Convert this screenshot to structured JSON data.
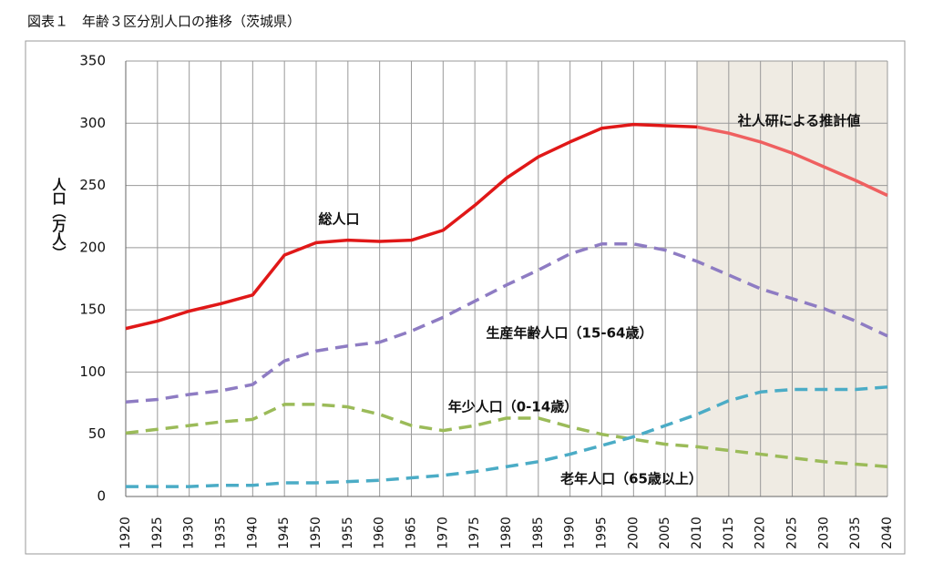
{
  "chart_data": {
    "type": "line",
    "title": "図表１　年齢３区分別人口の推移（茨城県）",
    "y_label": "人口（万人）",
    "x": [
      1920,
      1925,
      1930,
      1935,
      1940,
      1945,
      1950,
      1955,
      1960,
      1965,
      1970,
      1975,
      1980,
      1985,
      1990,
      1995,
      2000,
      2005,
      2010,
      2015,
      2020,
      2025,
      2030,
      2035,
      2040
    ],
    "xlim": [
      1920,
      2040
    ],
    "xticks": [
      1920,
      1925,
      1930,
      1935,
      1940,
      1945,
      1950,
      1955,
      1960,
      1965,
      1970,
      1975,
      1980,
      1985,
      1990,
      1995,
      2000,
      2005,
      2010,
      2015,
      2020,
      2025,
      2030,
      2035,
      2040
    ],
    "ylim": [
      0,
      350
    ],
    "yticks": [
      0,
      50,
      100,
      150,
      200,
      250,
      300,
      350
    ],
    "grid": true,
    "projection": {
      "label": "社人研による推計値",
      "from": 2010,
      "to": 2040,
      "color": "#efebe3",
      "line_color": "#ef6060"
    },
    "series": [
      {
        "name": "総人口",
        "color": "#e01818",
        "dashed": false,
        "values": [
          135,
          141,
          149,
          155,
          162,
          194,
          204,
          206,
          205,
          206,
          214,
          234,
          256,
          273,
          285,
          296,
          299,
          298,
          297,
          292,
          285,
          276,
          265,
          254,
          242
        ]
      },
      {
        "name": "生産年齢人口（15-64歳）",
        "color": "#8e7cc3",
        "dashed": true,
        "values": [
          76,
          78,
          82,
          85,
          90,
          109,
          117,
          121,
          124,
          133,
          144,
          157,
          170,
          182,
          195,
          203,
          203,
          198,
          189,
          178,
          167,
          159,
          151,
          141,
          129
        ]
      },
      {
        "name": "年少人口（0-14歳）",
        "color": "#9bbb59",
        "dashed": true,
        "values": [
          51,
          54,
          57,
          60,
          62,
          74,
          74,
          72,
          66,
          57,
          53,
          57,
          63,
          63,
          56,
          50,
          46,
          42,
          40,
          37,
          34,
          31,
          28,
          26,
          24
        ]
      },
      {
        "name": "老年人口（65歳以上）",
        "color": "#4bacc6",
        "dashed": true,
        "values": [
          8,
          8,
          8,
          9,
          9,
          11,
          11,
          12,
          13,
          15,
          17,
          20,
          24,
          28,
          34,
          41,
          48,
          57,
          66,
          77,
          84,
          86,
          86,
          86,
          88
        ]
      }
    ]
  }
}
